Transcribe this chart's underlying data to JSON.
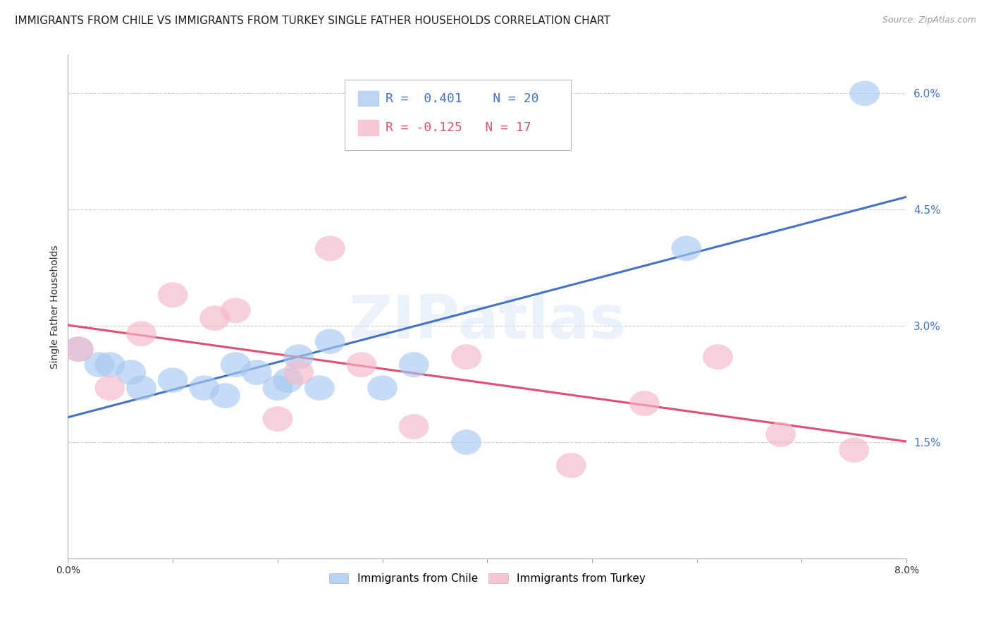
{
  "title": "IMMIGRANTS FROM CHILE VS IMMIGRANTS FROM TURKEY SINGLE FATHER HOUSEHOLDS CORRELATION CHART",
  "source": "Source: ZipAtlas.com",
  "ylabel": "Single Father Households",
  "xmin": 0.0,
  "xmax": 0.08,
  "ymin": 0.0,
  "ymax": 0.065,
  "yticks": [
    0.015,
    0.03,
    0.045,
    0.06
  ],
  "ytick_labels": [
    "1.5%",
    "3.0%",
    "4.5%",
    "6.0%"
  ],
  "xticks": [
    0.0,
    0.01,
    0.02,
    0.03,
    0.04,
    0.05,
    0.06,
    0.07,
    0.08
  ],
  "xtick_labels": [
    "0.0%",
    "",
    "",
    "",
    "",
    "",
    "",
    "",
    "8.0%"
  ],
  "chile_color": "#a8c8f0",
  "turkey_color": "#f5b8c8",
  "chile_line_color": "#4472c4",
  "turkey_line_color": "#e05070",
  "chile_R": 0.401,
  "chile_N": 20,
  "turkey_R": -0.125,
  "turkey_N": 17,
  "chile_x": [
    0.001,
    0.003,
    0.004,
    0.006,
    0.007,
    0.01,
    0.013,
    0.015,
    0.016,
    0.018,
    0.02,
    0.021,
    0.022,
    0.024,
    0.025,
    0.03,
    0.033,
    0.038,
    0.059,
    0.076
  ],
  "chile_y": [
    0.027,
    0.025,
    0.025,
    0.024,
    0.022,
    0.023,
    0.022,
    0.021,
    0.025,
    0.024,
    0.022,
    0.023,
    0.026,
    0.022,
    0.028,
    0.022,
    0.025,
    0.015,
    0.04,
    0.06
  ],
  "turkey_x": [
    0.001,
    0.004,
    0.007,
    0.01,
    0.014,
    0.016,
    0.02,
    0.022,
    0.025,
    0.028,
    0.033,
    0.038,
    0.048,
    0.055,
    0.062,
    0.068,
    0.075
  ],
  "turkey_y": [
    0.027,
    0.022,
    0.029,
    0.034,
    0.031,
    0.032,
    0.018,
    0.024,
    0.04,
    0.025,
    0.017,
    0.026,
    0.012,
    0.02,
    0.026,
    0.016,
    0.014
  ],
  "background_color": "#ffffff",
  "grid_color": "#d0d0d0",
  "watermark_text": "ZIPatlas",
  "title_fontsize": 11,
  "axis_label_fontsize": 10,
  "tick_fontsize": 10,
  "right_ytick_color": "#4472c4",
  "right_ytick_fontsize": 11,
  "scatter_size": 120,
  "scatter_alpha": 0.65
}
